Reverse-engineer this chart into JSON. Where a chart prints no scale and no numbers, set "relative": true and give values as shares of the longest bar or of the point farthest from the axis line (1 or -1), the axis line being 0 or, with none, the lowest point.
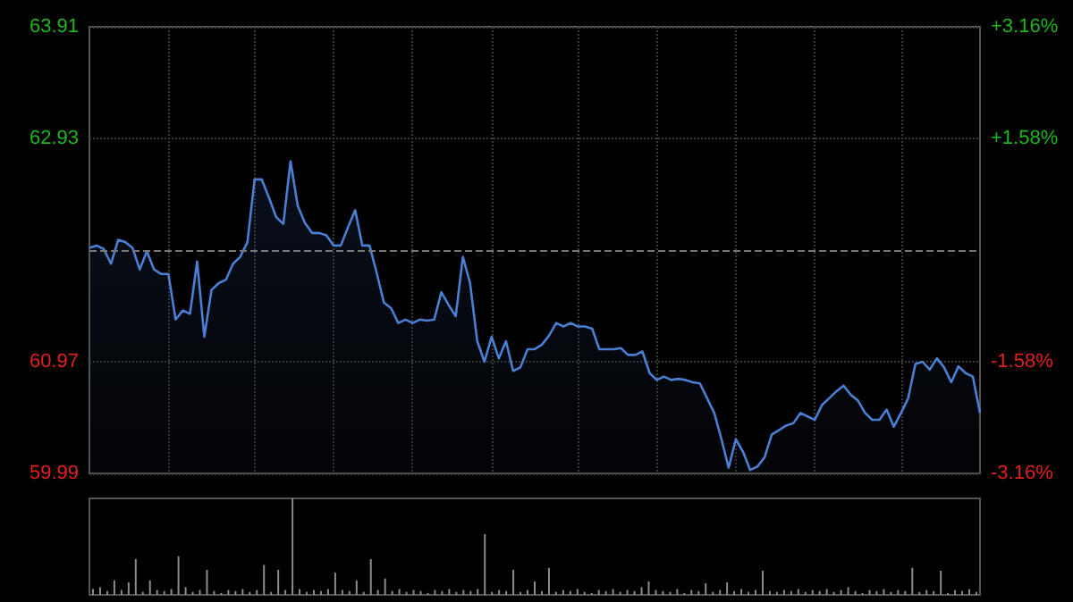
{
  "chart_data": [
    {
      "type": "area",
      "categories": [
        null,
        null,
        null,
        null,
        null,
        null,
        null,
        null,
        null,
        null,
        null,
        null,
        null,
        null,
        null,
        null,
        null,
        null,
        null,
        null,
        null,
        null,
        null,
        null,
        null,
        null,
        null,
        null,
        null,
        null,
        null,
        null,
        null,
        null,
        null,
        null,
        null,
        null,
        null,
        null,
        null,
        null,
        null,
        null,
        null,
        null,
        null,
        null,
        null,
        null,
        null,
        null,
        null,
        null,
        null,
        null,
        null,
        null,
        null,
        null,
        null,
        null,
        null,
        null,
        null,
        null,
        null,
        null,
        null,
        null,
        null,
        null,
        null,
        null,
        null,
        null,
        null,
        null,
        null,
        null,
        null,
        null,
        null,
        null,
        null,
        null,
        null,
        null,
        null,
        null,
        null,
        null,
        null,
        null,
        null,
        null,
        null,
        null,
        null,
        null,
        null,
        null,
        null,
        null,
        null,
        null,
        null,
        null,
        null,
        null,
        null,
        null,
        null,
        null,
        null,
        null,
        null,
        null,
        null,
        null,
        null,
        null,
        null,
        null,
        null
      ],
      "series": [
        {
          "color": "#4a7fd4",
          "values": [
            61.97,
            61.99,
            61.96,
            61.83,
            62.04,
            62.02,
            61.97,
            61.78,
            61.94,
            61.78,
            61.74,
            61.74,
            61.34,
            61.42,
            61.39,
            61.85,
            61.19,
            61.6,
            61.66,
            61.69,
            61.83,
            61.89,
            62.02,
            62.57,
            62.57,
            62.41,
            62.24,
            62.18,
            62.73,
            62.34,
            62.19,
            62.1,
            62.1,
            62.08,
            61.99,
            61.99,
            62.15,
            62.3,
            61.99,
            61.99,
            61.75,
            61.49,
            61.44,
            61.31,
            61.34,
            61.31,
            61.34,
            61.33,
            61.34,
            61.58,
            61.47,
            61.37,
            61.89,
            61.66,
            61.15,
            60.97,
            61.19,
            61.0,
            61.15,
            60.89,
            60.92,
            61.08,
            61.08,
            61.12,
            61.2,
            61.31,
            61.28,
            61.31,
            61.28,
            61.28,
            61.26,
            61.08,
            61.08,
            61.08,
            61.09,
            61.03,
            61.03,
            61.06,
            60.87,
            60.81,
            60.84,
            60.81,
            60.82,
            60.81,
            60.79,
            60.78,
            60.65,
            60.52,
            60.29,
            60.04,
            60.29,
            60.18,
            60.02,
            60.05,
            60.13,
            60.33,
            60.37,
            60.41,
            60.43,
            60.52,
            60.49,
            60.46,
            60.59,
            60.65,
            60.71,
            60.76,
            60.68,
            60.63,
            60.52,
            60.46,
            60.46,
            60.55,
            60.4,
            60.52,
            60.65,
            60.95,
            60.97,
            60.9,
            61.0,
            60.92,
            60.79,
            60.93,
            60.87,
            60.84,
            60.52
          ]
        }
      ],
      "ylim": [
        59.99,
        63.91
      ],
      "yticks": [
        59.99,
        60.97,
        62.93,
        63.91
      ],
      "y2lim": [
        -3.16,
        3.16
      ],
      "y2ticks": [
        {
          "value": -3.16,
          "label": "-3.16%"
        },
        {
          "value": -1.58,
          "label": "-1.58%"
        },
        {
          "value": 1.58,
          "label": "+1.58%"
        },
        {
          "value": 3.16,
          "label": "+3.16%"
        }
      ],
      "ref_lines": [
        {
          "axis": "y",
          "value": 61.95
        }
      ],
      "grid": true,
      "tick_labels": "y"
    },
    {
      "type": "bar",
      "relative": true,
      "color": "#8c8c8c",
      "categories": [
        null,
        null,
        null,
        null,
        null,
        null,
        null,
        null,
        null,
        null,
        null,
        null,
        null,
        null,
        null,
        null,
        null,
        null,
        null,
        null,
        null,
        null,
        null,
        null,
        null,
        null,
        null,
        null,
        null,
        null,
        null,
        null,
        null,
        null,
        null,
        null,
        null,
        null,
        null,
        null,
        null,
        null,
        null,
        null,
        null,
        null,
        null,
        null,
        null,
        null,
        null,
        null,
        null,
        null,
        null,
        null,
        null,
        null,
        null,
        null,
        null,
        null,
        null,
        null,
        null,
        null,
        null,
        null,
        null,
        null,
        null,
        null,
        null,
        null,
        null,
        null,
        null,
        null,
        null,
        null,
        null,
        null,
        null,
        null,
        null,
        null,
        null,
        null,
        null,
        null,
        null,
        null,
        null,
        null,
        null,
        null,
        null,
        null,
        null,
        null,
        null,
        null,
        null,
        null,
        null,
        null,
        null,
        null,
        null,
        null,
        null,
        null,
        null,
        null,
        null,
        null,
        null,
        null,
        null,
        null,
        null,
        null,
        null,
        null,
        null
      ],
      "values": [
        0.06,
        0.08,
        0.04,
        0.15,
        0.05,
        0.13,
        0.37,
        0.03,
        0.15,
        0.05,
        0.04,
        0.06,
        0.4,
        0.08,
        0.03,
        0.05,
        0.26,
        0.04,
        0.02,
        0.05,
        0.04,
        0.06,
        0.03,
        0.05,
        0.31,
        0.03,
        0.26,
        0.05,
        1,
        0.06,
        0.03,
        0.05,
        0.04,
        0.06,
        0.23,
        0.05,
        0.04,
        0.15,
        0.03,
        0.37,
        0.05,
        0.17,
        0.04,
        0.06,
        0.03,
        0.05,
        0.04,
        0.02,
        0.05,
        0.04,
        0.06,
        0.03,
        0.05,
        0.04,
        0.06,
        0.63,
        0.03,
        0.05,
        0.04,
        0.26,
        0.03,
        0.05,
        0.14,
        0.04,
        0.28,
        0.03,
        0.05,
        0.04,
        0.06,
        0.03,
        0.02,
        0.05,
        0.04,
        0.06,
        0.03,
        0.05,
        0.04,
        0.08,
        0.14,
        0.05,
        0.04,
        0.03,
        0.06,
        0.02,
        0.05,
        0.04,
        0.12,
        0.03,
        0.05,
        0.13,
        0.04,
        0.06,
        0.03,
        0.05,
        0.25,
        0.04,
        0.03,
        0.05,
        0.04,
        0.06,
        0.03,
        0.05,
        0.04,
        0.06,
        0.03,
        0.05,
        0.08,
        0.04,
        0.02,
        0.05,
        0.04,
        0.06,
        0.03,
        0.05,
        0.04,
        0.28,
        0.03,
        0.05,
        0.04,
        0.25,
        0.02,
        0.05,
        0.04,
        0.06,
        0.03
      ]
    }
  ]
}
